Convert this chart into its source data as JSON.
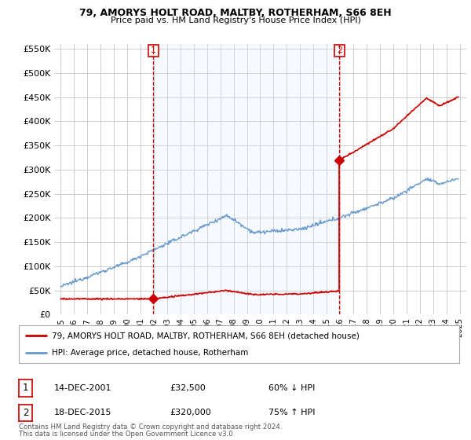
{
  "title": "79, AMORYS HOLT ROAD, MALTBY, ROTHERHAM, S66 8EH",
  "subtitle": "Price paid vs. HM Land Registry's House Price Index (HPI)",
  "legend_line1": "79, AMORYS HOLT ROAD, MALTBY, ROTHERHAM, S66 8EH (detached house)",
  "legend_line2": "HPI: Average price, detached house, Rotherham",
  "footer1": "Contains HM Land Registry data © Crown copyright and database right 2024.",
  "footer2": "This data is licensed under the Open Government Licence v3.0.",
  "annotation1_label": "1",
  "annotation1_date": "14-DEC-2001",
  "annotation1_price": "£32,500",
  "annotation1_pct": "60% ↓ HPI",
  "annotation2_label": "2",
  "annotation2_date": "18-DEC-2015",
  "annotation2_price": "£320,000",
  "annotation2_pct": "75% ↑ HPI",
  "sale1_x": 2001.96,
  "sale1_y": 32500,
  "sale2_x": 2015.96,
  "sale2_y": 320000,
  "vline1_x": 2001.96,
  "vline2_x": 2015.96,
  "ylim": [
    0,
    560000
  ],
  "xlim": [
    1994.5,
    2025.5
  ],
  "hpi_color": "#6699cc",
  "sale_color": "#cc0000",
  "vline_color": "#cc0000",
  "shade_color": "#ddeeff",
  "background_color": "#ffffff",
  "grid_color": "#cccccc",
  "yticks": [
    0,
    50000,
    100000,
    150000,
    200000,
    250000,
    300000,
    350000,
    400000,
    450000,
    500000,
    550000
  ],
  "ytick_labels": [
    "£0",
    "£50K",
    "£100K",
    "£150K",
    "£200K",
    "£250K",
    "£300K",
    "£350K",
    "£400K",
    "£450K",
    "£500K",
    "£550K"
  ],
  "xticks": [
    1995,
    1996,
    1997,
    1998,
    1999,
    2000,
    2001,
    2002,
    2003,
    2004,
    2005,
    2006,
    2007,
    2008,
    2009,
    2010,
    2011,
    2012,
    2013,
    2014,
    2015,
    2016,
    2017,
    2018,
    2019,
    2020,
    2021,
    2022,
    2023,
    2024,
    2025
  ]
}
